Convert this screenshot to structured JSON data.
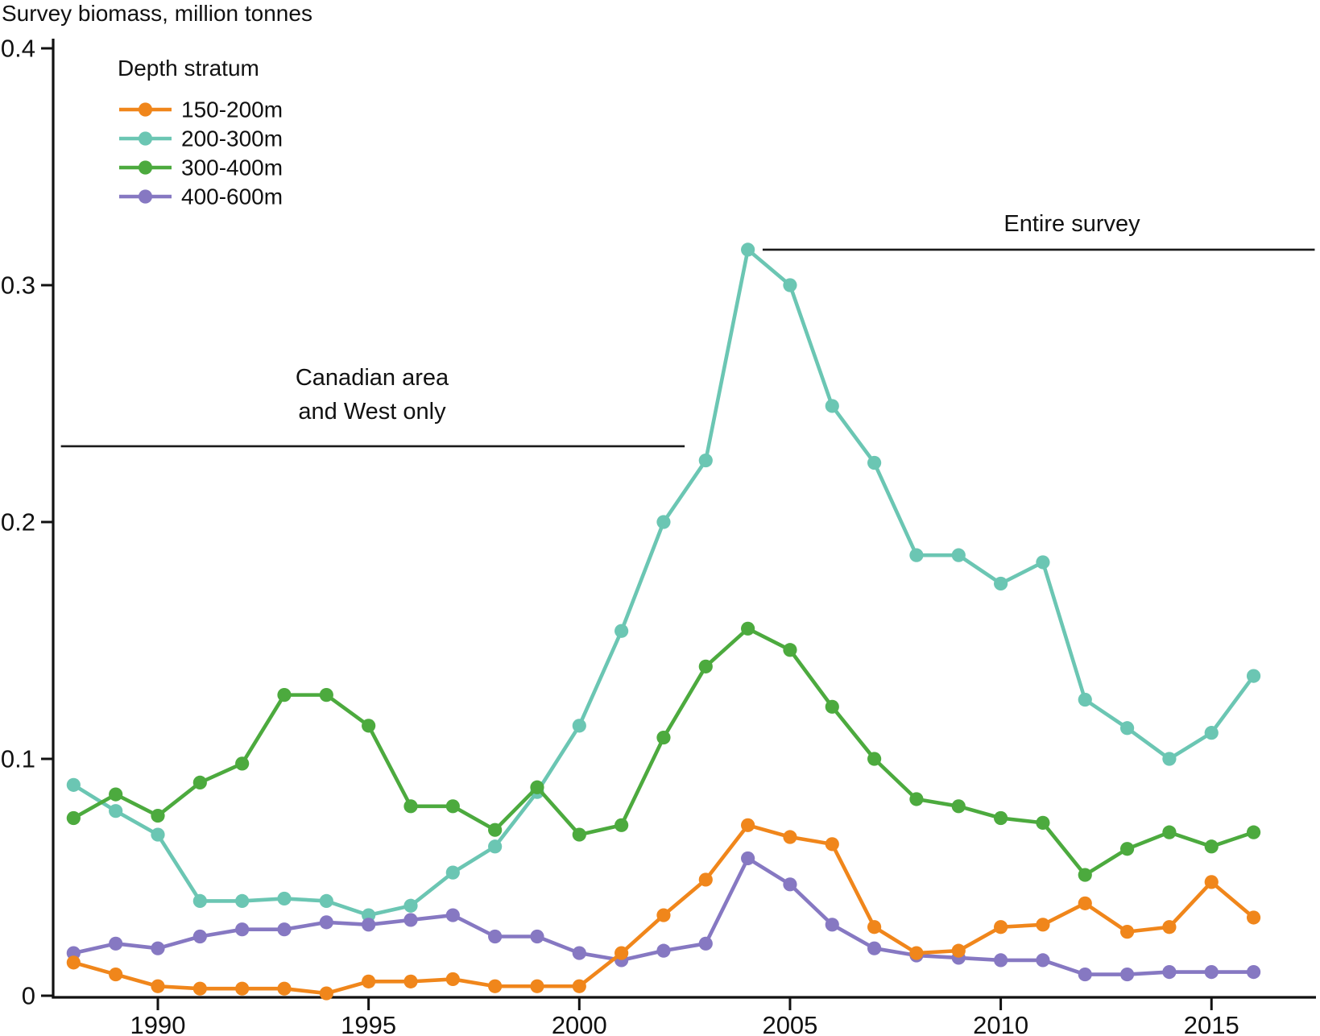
{
  "title": "Survey biomass, million tonnes",
  "legend": {
    "title": "Depth stratum"
  },
  "annotations": [
    {
      "id": "canadian",
      "lines": [
        "Canadian area",
        "and West only"
      ],
      "line_value": 0.232,
      "line_year_start": 1987.7,
      "line_year_end": 2002.5
    },
    {
      "id": "entire",
      "lines": [
        "Entire survey"
      ],
      "line_value": 0.315,
      "line_year_start": 2004.35,
      "line_year_end": 2017.45
    }
  ],
  "chart_data": {
    "type": "line",
    "title": "Survey biomass, million tonnes",
    "legend_title": "Depth stratum",
    "xlabel": "",
    "ylabel": "Survey biomass, million tonnes",
    "xlim": [
      1987.5,
      2017.5
    ],
    "ylim": [
      0,
      0.4
    ],
    "grid": false,
    "legend_position": "upper-left",
    "x_ticks": [
      1990,
      1995,
      2000,
      2005,
      2010,
      2015
    ],
    "y_ticks": [
      {
        "value": 0.0,
        "label": "0"
      },
      {
        "value": 0.1,
        "label": "0.1"
      },
      {
        "value": 0.2,
        "label": "0.2"
      },
      {
        "value": 0.3,
        "label": "0.3"
      },
      {
        "value": 0.4,
        "label": "0.4"
      }
    ],
    "x": [
      1988,
      1989,
      1990,
      1991,
      1992,
      1993,
      1994,
      1995,
      1996,
      1997,
      1998,
      1999,
      2000,
      2001,
      2002,
      2003,
      2004,
      2005,
      2006,
      2007,
      2008,
      2009,
      2010,
      2011,
      2012,
      2013,
      2014,
      2015,
      2016
    ],
    "series": [
      {
        "name": "150-200m",
        "color": "#F0861B",
        "values": [
          0.014,
          0.009,
          0.004,
          0.003,
          0.003,
          0.003,
          0.001,
          0.006,
          0.006,
          0.007,
          0.004,
          0.004,
          0.004,
          0.018,
          0.034,
          0.049,
          0.072,
          0.067,
          0.064,
          0.029,
          0.018,
          0.019,
          0.029,
          0.03,
          0.039,
          0.027,
          0.029,
          0.048,
          0.033
        ]
      },
      {
        "name": "200-300m",
        "color": "#6BC6B3",
        "values": [
          0.089,
          0.078,
          0.068,
          0.04,
          0.04,
          0.041,
          0.04,
          0.034,
          0.038,
          0.052,
          0.063,
          0.086,
          0.114,
          0.154,
          0.2,
          0.226,
          0.315,
          0.3,
          0.249,
          0.225,
          0.186,
          0.186,
          0.174,
          0.183,
          0.125,
          0.113,
          0.1,
          0.111,
          0.135
        ]
      },
      {
        "name": "300-400m",
        "color": "#4CAA3E",
        "values": [
          0.075,
          0.085,
          0.076,
          0.09,
          0.098,
          0.127,
          0.127,
          0.114,
          0.08,
          0.08,
          0.07,
          0.088,
          0.068,
          0.072,
          0.109,
          0.139,
          0.155,
          0.146,
          0.122,
          0.1,
          0.083,
          0.08,
          0.075,
          0.073,
          0.051,
          0.062,
          0.069,
          0.063,
          0.069
        ]
      },
      {
        "name": "400-600m",
        "color": "#8678C2",
        "values": [
          0.018,
          0.022,
          0.02,
          0.025,
          0.028,
          0.028,
          0.031,
          0.03,
          0.032,
          0.034,
          0.025,
          0.025,
          0.018,
          0.015,
          0.019,
          0.022,
          0.058,
          0.047,
          0.03,
          0.02,
          0.017,
          0.016,
          0.015,
          0.015,
          0.009,
          0.009,
          0.01,
          0.01,
          0.01
        ]
      }
    ]
  }
}
